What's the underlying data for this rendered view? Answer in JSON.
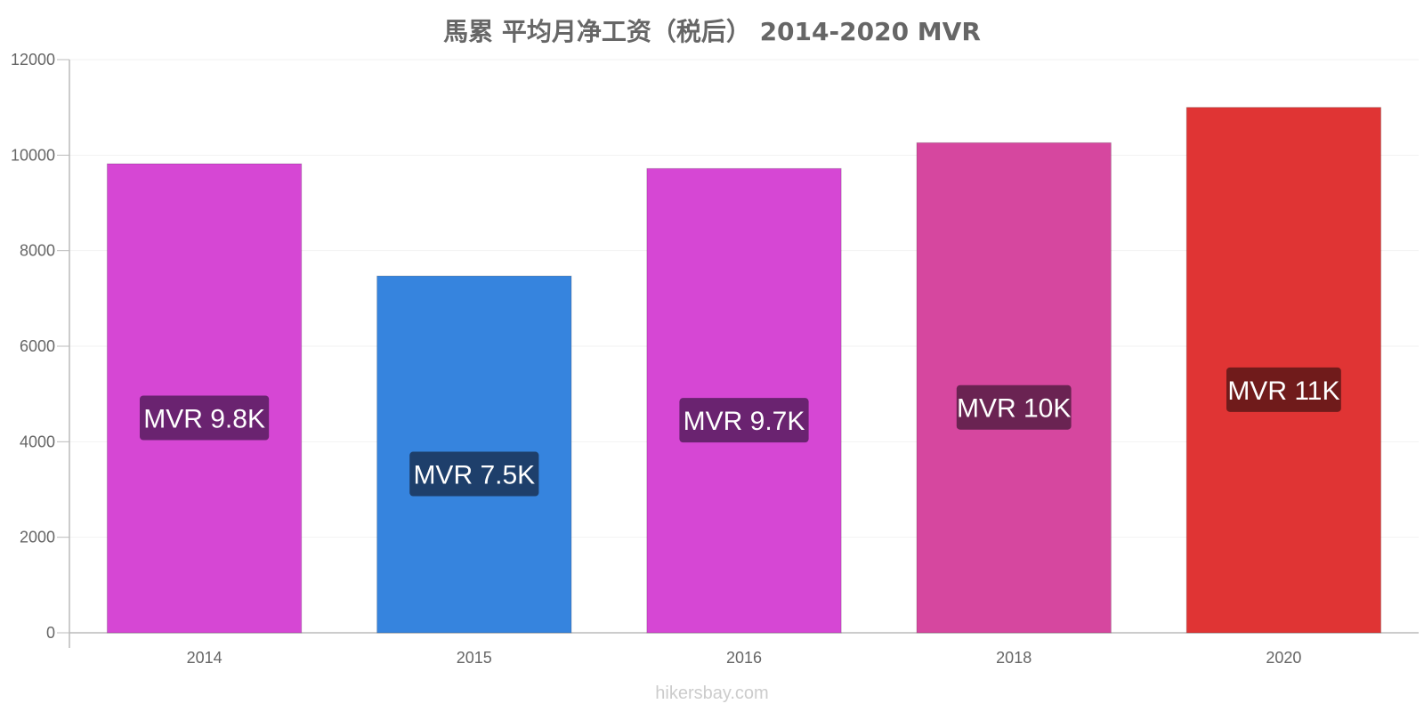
{
  "chart_data": {
    "type": "bar",
    "title": "馬累 平均月净工资（税后） 2014-2020 MVR",
    "categories": [
      "2014",
      "2015",
      "2016",
      "2018",
      "2020"
    ],
    "values": [
      9820,
      7470,
      9720,
      10260,
      11000
    ],
    "data_labels": [
      "MVR 9.8K",
      "MVR 7.5K",
      "MVR 9.7K",
      "MVR 10K",
      "MVR 11K"
    ],
    "bar_colors": [
      "#d647d4",
      "#3684de",
      "#d647d4",
      "#d6479f",
      "#e03434"
    ],
    "label_bg_colors": [
      "#6a2370",
      "#1e3f6b",
      "#6a2370",
      "#6a2352",
      "#701b1b"
    ],
    "y_ticks": [
      0,
      2000,
      4000,
      6000,
      8000,
      10000,
      12000
    ],
    "ylim": [
      0,
      12000
    ],
    "xlabel": "",
    "ylabel": "",
    "grid": true,
    "legend": "none"
  },
  "watermark": "hikersbay.com"
}
